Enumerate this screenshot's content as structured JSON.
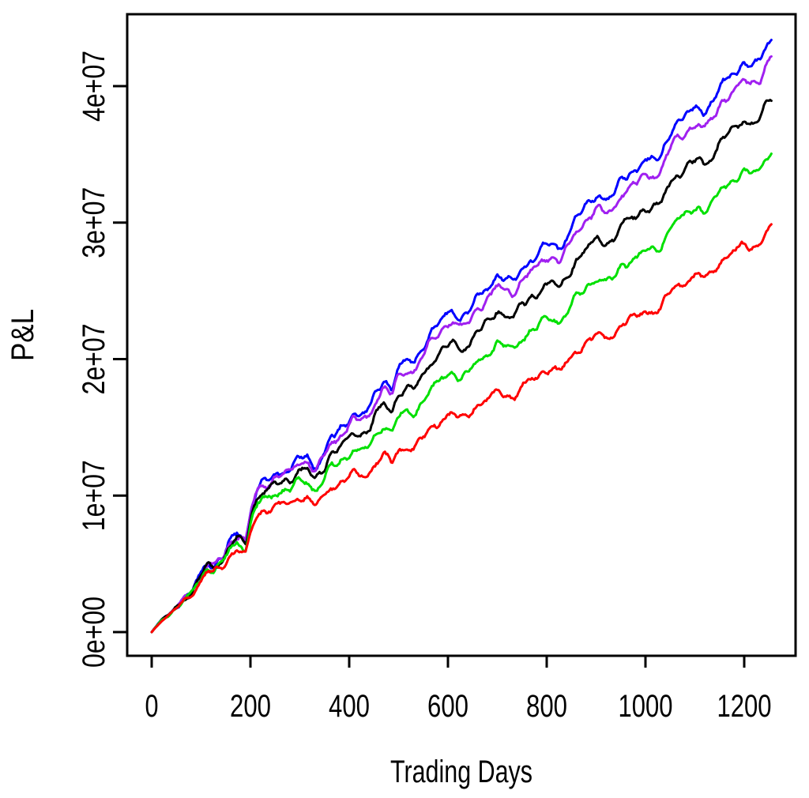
{
  "page": {
    "background": "#FFFFFF"
  },
  "chart_data": {
    "type": "line",
    "title": "",
    "xlabel": "Trading Days",
    "ylabel": "P&L",
    "x_ticks": [
      0,
      200,
      400,
      600,
      800,
      1000,
      1200
    ],
    "x_tick_labels": [
      "0",
      "200",
      "400",
      "600",
      "800",
      "1000",
      "1200"
    ],
    "y_ticks": [
      0,
      10000000,
      20000000,
      30000000,
      40000000
    ],
    "y_tick_labels": [
      "0e+00",
      "1e+07",
      "2e+07",
      "3e+07",
      "4e+07"
    ],
    "xlim": [
      -48,
      1301
    ],
    "ylim": [
      -1700000,
      45300000
    ],
    "grid": false,
    "legend": "none",
    "x_unit": "trading days",
    "n_days": 1257,
    "line_color_names": [
      "blue",
      "purple",
      "black",
      "green",
      "red"
    ],
    "waypoint_days": [
      0,
      40,
      80,
      120,
      165,
      172,
      190,
      215,
      237,
      280,
      333,
      365,
      400,
      445,
      469,
      487,
      505,
      525,
      573,
      650,
      720,
      813,
      877,
      922,
      1000,
      1053,
      1100,
      1150,
      1200,
      1257
    ],
    "series": [
      {
        "name": "blue",
        "color": "#0000FF",
        "final_value": 43500000,
        "values": [
          0,
          1600000,
          3300000,
          5000000,
          7000000,
          7350000,
          6450000,
          10000000,
          11400000,
          12100000,
          12900000,
          14600000,
          15000000,
          16800000,
          18200000,
          17600000,
          19000000,
          20200000,
          22600000,
          24000000,
          25800000,
          28600000,
          30800000,
          31900000,
          34200000,
          37000000,
          38200000,
          39400000,
          41200000,
          43500000
        ]
      },
      {
        "name": "purple",
        "color": "#A020F0",
        "final_value": 42100000,
        "values": [
          0,
          1590000,
          3270000,
          4940000,
          6890000,
          7240000,
          6340000,
          9820000,
          11180000,
          11840000,
          12590000,
          14230000,
          14590000,
          16310000,
          17650000,
          17060000,
          18400000,
          19550000,
          21880000,
          23230000,
          24970000,
          27680000,
          29810000,
          30880000,
          33100000,
          35820000,
          36980000,
          38130000,
          39880000,
          42100000
        ]
      },
      {
        "name": "black",
        "color": "#000000",
        "final_value": 39100000,
        "values": [
          0,
          1570000,
          3200000,
          4810000,
          6660000,
          6990000,
          6110000,
          9430000,
          10710000,
          11280000,
          11930000,
          13430000,
          13720000,
          15270000,
          16480000,
          15900000,
          17120000,
          18160000,
          20320000,
          21580000,
          23190000,
          25710000,
          27690000,
          28680000,
          30750000,
          33260000,
          34340000,
          35420000,
          37040000,
          39100000
        ]
      },
      {
        "name": "green",
        "color": "#00E000",
        "final_value": 35200000,
        "values": [
          0,
          1540000,
          3110000,
          4630000,
          6370000,
          6670000,
          5810000,
          8930000,
          10090000,
          10550000,
          11060000,
          12380000,
          12590000,
          13900000,
          14950000,
          14380000,
          15440000,
          16340000,
          18280000,
          19420000,
          20870000,
          23140000,
          24920000,
          25810000,
          27670000,
          29930000,
          30900000,
          31870000,
          33330000,
          35200000
        ]
      },
      {
        "name": "red",
        "color": "#FF0000",
        "final_value": 29600000,
        "values": [
          0,
          1500000,
          2990000,
          4380000,
          5940000,
          6200000,
          5380000,
          8200000,
          9210000,
          9510000,
          9810000,
          10890000,
          10950000,
          11940000,
          12760000,
          12210000,
          13030000,
          13730000,
          15370000,
          16320000,
          17300000,
          19450000,
          20940000,
          21690000,
          23260000,
          25160000,
          25980000,
          26790000,
          28020000,
          29600000
        ]
      }
    ]
  }
}
